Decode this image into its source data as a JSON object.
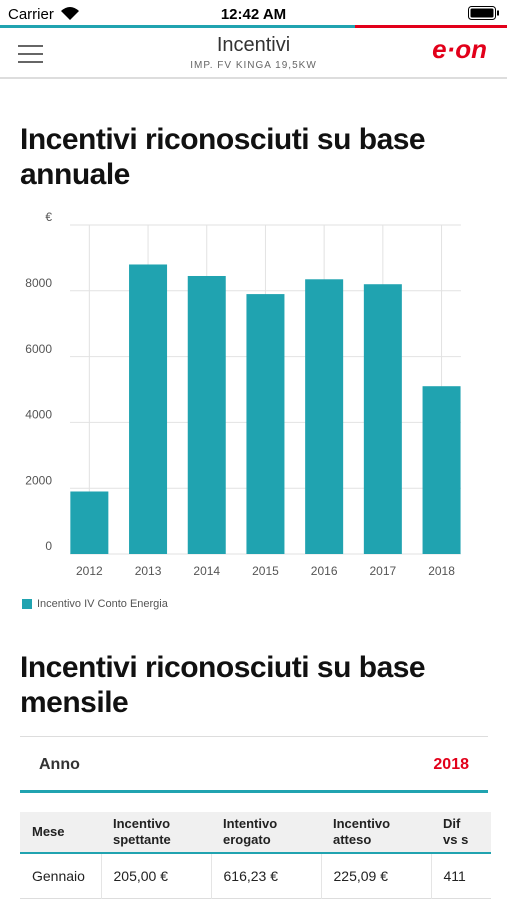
{
  "status_bar": {
    "carrier": "Carrier",
    "time": "12:42 AM"
  },
  "header": {
    "title": "Incentivi",
    "subtitle": "IMP. FV KINGA 19,5KW",
    "logo": "e·on"
  },
  "chart_data": {
    "type": "bar",
    "title": "Incentivi riconosciuti su base annuale",
    "categories": [
      "2012",
      "2013",
      "2014",
      "2015",
      "2016",
      "2017",
      "2018"
    ],
    "series": [
      {
        "name": "Incentivo IV Conto Energia",
        "color": "#20a3b0",
        "values": [
          1900,
          8800,
          8450,
          7900,
          8350,
          8200,
          5100
        ]
      }
    ],
    "ylim": [
      0,
      10000
    ],
    "yticks": [
      0,
      2000,
      4000,
      6000,
      8000,
      {
        "value": 10000,
        "label": "€"
      }
    ],
    "grid": true,
    "legend": "bottom-left"
  },
  "monthly": {
    "title": "Incentivi riconosciuti su base mensile",
    "year_label": "Anno",
    "year": "2018",
    "table": {
      "headers": [
        [
          "Mese"
        ],
        [
          "Incentivo",
          "spettante"
        ],
        [
          "Intentivo",
          "erogato"
        ],
        [
          "Incentivo",
          "atteso"
        ],
        [
          "Dif",
          "vs s"
        ]
      ],
      "rows": [
        [
          "Gennaio",
          "205,00 €",
          "616,23 €",
          "225,09 €",
          "411"
        ]
      ]
    }
  }
}
